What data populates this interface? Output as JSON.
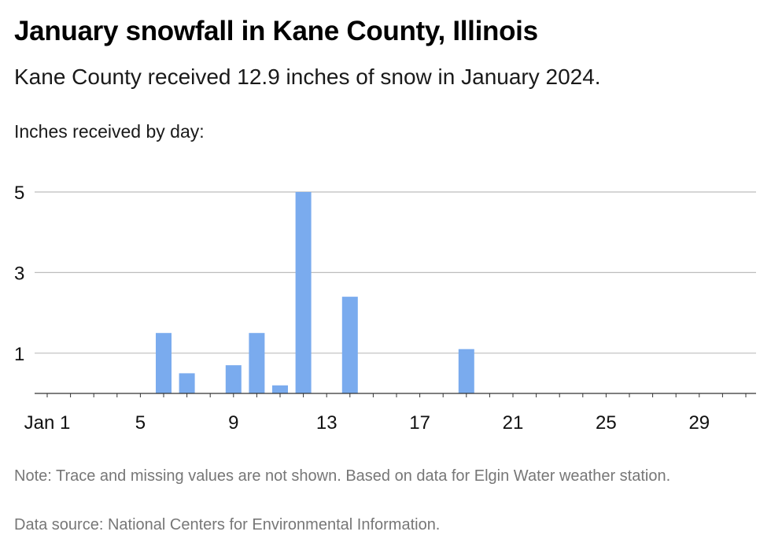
{
  "title": "January snowfall in Kane County, Illinois",
  "subtitle": "Kane County received 12.9 inches of snow in January 2024.",
  "axis_caption": "Inches received by day:",
  "note": "Note: Trace and missing values are not shown. Based on data for Elgin Water weather station.",
  "source": "Data source: National Centers for Environmental Information.",
  "colors": {
    "bar": "#7aabee",
    "gridline": "#bdbdbd",
    "axis": "#333333"
  },
  "chart_data": {
    "type": "bar",
    "title": "January snowfall in Kane County, Illinois",
    "ylabel": "Inches received by day:",
    "ylim": [
      0,
      5
    ],
    "xlim": [
      1,
      31
    ],
    "x_ticks": [
      1,
      5,
      9,
      13,
      17,
      21,
      25,
      29
    ],
    "x_tick_labels": [
      "Jan 1",
      "5",
      "9",
      "13",
      "17",
      "21",
      "25",
      "29"
    ],
    "y_ticks": [
      1,
      3,
      5
    ],
    "y_tick_labels": [
      "1",
      "3",
      "5"
    ],
    "grid": true,
    "x": [
      6,
      7,
      9,
      10,
      11,
      12,
      14,
      19
    ],
    "values": [
      1.5,
      0.5,
      0.7,
      1.5,
      0.2,
      5.0,
      2.4,
      1.1
    ]
  }
}
